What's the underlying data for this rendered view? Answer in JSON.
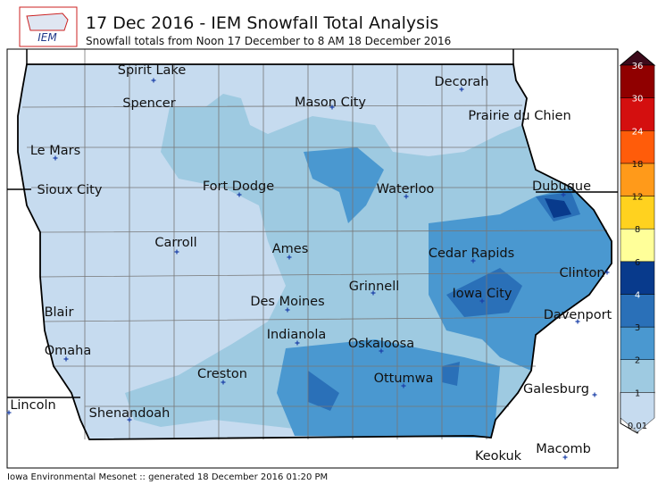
{
  "header": {
    "logo": "IEM",
    "title": "17 Dec 2016 - IEM Snowfall Total Analysis",
    "subtitle": "Snowfall totals from Noon 17 December to 8 AM 18 December 2016"
  },
  "cities": [
    "Spirit Lake",
    "Spencer",
    "Mason City",
    "Decorah",
    "Prairie du Chien",
    "Le Mars",
    "Fort Dodge",
    "Waterloo",
    "Dubuque",
    "Sioux City",
    "Carroll",
    "Ames",
    "Cedar Rapids",
    "Grinnell",
    "Clinton",
    "Des Moines",
    "Iowa City",
    "Blair",
    "Davenport",
    "Indianola",
    "Oskaloosa",
    "Omaha",
    "Creston",
    "Ottumwa",
    "Galesburg",
    "Lincoln",
    "Shenandoah",
    "Keokuk",
    "Macomb"
  ],
  "colorbar": {
    "levels": [
      0.01,
      1,
      2,
      3,
      4,
      6,
      8,
      12,
      18,
      24,
      30,
      36
    ],
    "colors": [
      "#c6dbef",
      "#9ecae1",
      "#4a98d0",
      "#2a70b8",
      "#083a8c",
      "#ffff99",
      "#ffd21f",
      "#ff9a1a",
      "#ff5c0a",
      "#d40f0f",
      "#900000"
    ],
    "over_color": "#3d0a1a"
  },
  "footer": "Iowa Environmental Mesonet :: generated 18 December 2016 01:20 PM"
}
